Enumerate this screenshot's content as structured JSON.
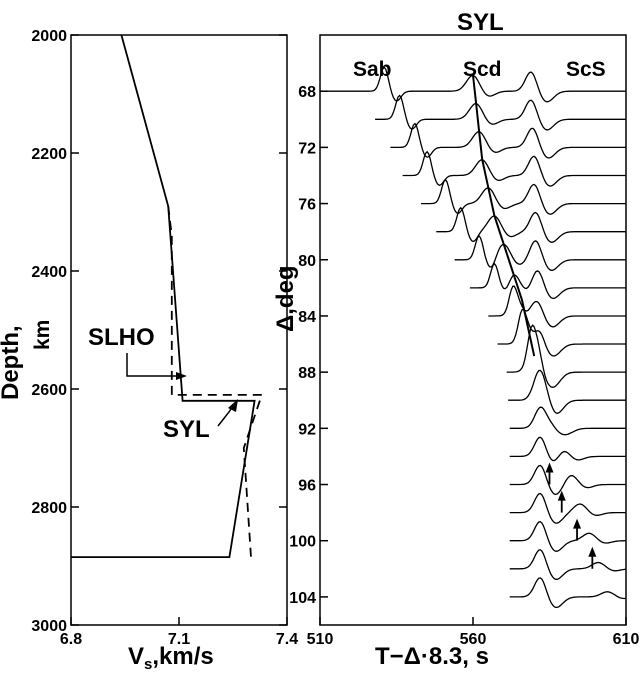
{
  "chart_data": [
    {
      "type": "line",
      "xlabel": "V",
      "xlabel_sub": "s",
      "xlabel_unit": ",km/s",
      "ylabel": "Depth,",
      "ylabel_unit": "km",
      "xlim": [
        6.8,
        7.4
      ],
      "ylim": [
        2000,
        3000
      ],
      "x_ticks": [
        "6.8",
        "7.1",
        "7.4"
      ],
      "y_ticks": [
        "2000",
        "2200",
        "2400",
        "2600",
        "2800",
        "3000"
      ],
      "series": [
        {
          "name": "SYL",
          "style": "solid",
          "x": [
            6.94,
            7.07,
            7.11,
            7.31,
            7.24,
            6.8
          ],
          "y": [
            2000,
            2290,
            2620,
            2620,
            2885,
            2885
          ]
        },
        {
          "name": "SLHO",
          "style": "dashed",
          "x": [
            7.07,
            7.08,
            7.08,
            7.33,
            7.28,
            7.3,
            7.3
          ],
          "y": [
            2290,
            2340,
            2610,
            2610,
            2700,
            2885,
            2885
          ]
        }
      ],
      "annotations": [
        "SLHO",
        "SYL"
      ]
    },
    {
      "type": "line",
      "title": "SYL",
      "xlabel": "T−Δ·8.3, s",
      "ylabel": "Δ,deg",
      "xlim": [
        510,
        610
      ],
      "ylim": [
        106,
        64
      ],
      "x_ticks": [
        "510",
        "560",
        "610"
      ],
      "y_ticks": [
        "68",
        "72",
        "76",
        "80",
        "84",
        "88",
        "92",
        "96",
        "100",
        "104"
      ],
      "phase_labels": [
        "Sab",
        "Scd",
        "ScS"
      ],
      "distances": [
        68,
        70,
        72,
        74,
        76,
        78,
        80,
        82,
        84,
        86,
        88,
        90,
        92,
        94,
        96,
        98,
        100,
        102,
        104
      ],
      "scs_times": [
        579,
        579,
        579.5,
        580,
        580,
        580.5,
        580.5,
        581,
        581,
        581.5,
        581.5,
        581.5,
        582,
        582,
        582,
        582,
        582,
        582,
        582
      ],
      "scd_times": [
        560,
        561,
        562,
        563,
        565,
        567,
        570,
        573,
        576,
        578,
        580,
        583,
        586,
        589,
        592,
        595,
        598,
        601,
        604
      ],
      "sab_times": [
        531,
        536,
        541,
        545,
        551,
        556,
        562,
        567,
        573,
        576,
        579
      ],
      "arrow_times": [
        585,
        589,
        594,
        599
      ]
    }
  ]
}
